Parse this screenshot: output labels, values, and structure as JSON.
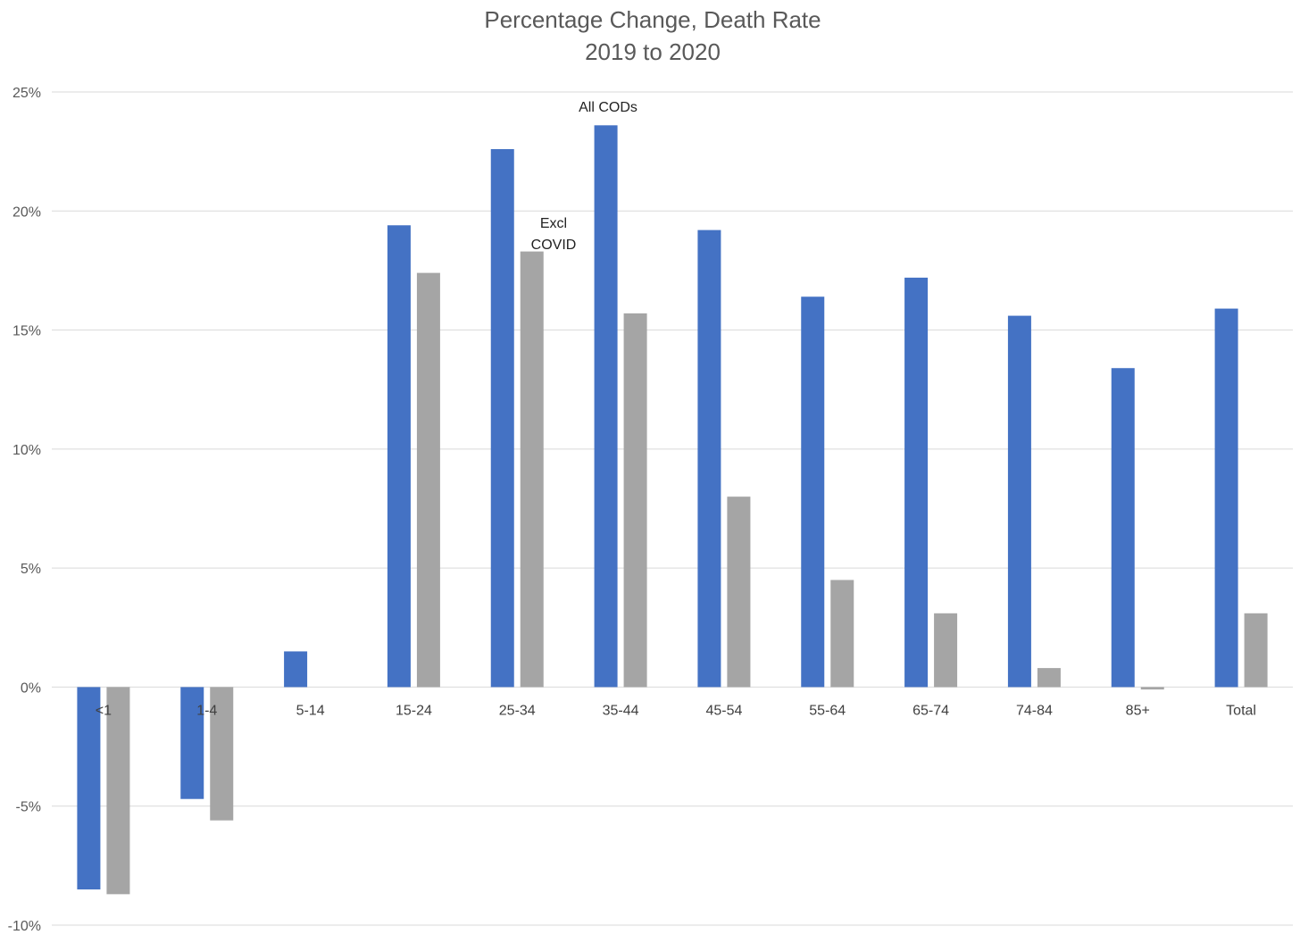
{
  "chart_data": {
    "type": "bar",
    "title": "Percentage Change, Death Rate",
    "subtitle": "2019 to 2020",
    "xlabel": "",
    "ylabel": "",
    "ylim": [
      -10,
      25
    ],
    "yticks": [
      25,
      20,
      15,
      10,
      5,
      0,
      -5,
      -10
    ],
    "ytick_labels": [
      "25%",
      "20%",
      "15%",
      "10%",
      "5%",
      "0%",
      "-5%",
      "-10%"
    ],
    "grid": true,
    "legend": "none",
    "categories": [
      "<1",
      "1-4",
      "5-14",
      "15-24",
      "25-34",
      "35-44",
      "45-54",
      "55-64",
      "65-74",
      "74-84",
      "85+",
      "Total"
    ],
    "series": [
      {
        "name": "All CODs",
        "color": "#4472c4",
        "values": [
          -8.5,
          -4.7,
          1.5,
          19.4,
          22.6,
          23.6,
          19.2,
          16.4,
          17.2,
          15.6,
          13.4,
          15.9
        ]
      },
      {
        "name": "Excl COVID",
        "color": "#a5a5a5",
        "values": [
          -8.7,
          -5.6,
          0.0,
          17.4,
          18.3,
          15.7,
          8.0,
          4.5,
          3.1,
          0.8,
          -0.1,
          3.1
        ]
      }
    ],
    "annotations": {
      "all_cods": "All CODs",
      "excl_covid_line1": "Excl",
      "excl_covid_line2": "COVID"
    }
  }
}
